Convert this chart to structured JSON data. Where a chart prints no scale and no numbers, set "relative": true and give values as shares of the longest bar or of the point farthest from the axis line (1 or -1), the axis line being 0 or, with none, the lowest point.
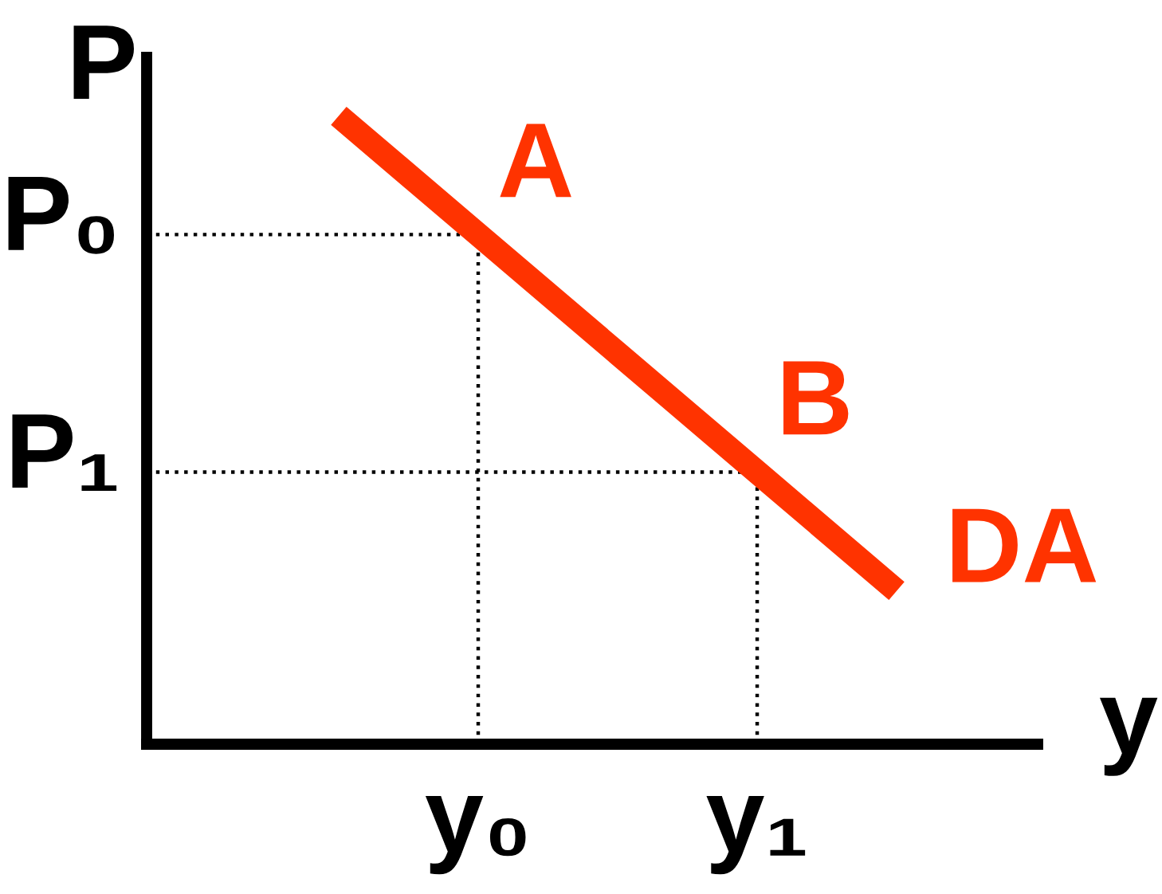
{
  "chart_data": {
    "type": "line",
    "relative": true,
    "xlabel": "y",
    "ylabel": "P",
    "line_style": "solid",
    "categories": [
      null,
      "y₀",
      null,
      "y₁",
      null
    ],
    "series": [
      {
        "name": "DA",
        "color": "#ff3300",
        "values": [
          1,
          0.811,
          0.622,
          0.433,
          0.244
        ]
      }
    ],
    "ref_lines": [
      {
        "axis": "y",
        "value": 0.811,
        "label": "P₀",
        "color": "#000000",
        "line_style": "dotted"
      },
      {
        "axis": "y",
        "value": 0.433,
        "label": "P₁",
        "color": "#000000",
        "line_style": "dotted"
      },
      {
        "axis": "x",
        "value": "y₀",
        "color": "#000000",
        "line_style": "dotted"
      },
      {
        "axis": "x",
        "value": "y₁",
        "color": "#000000",
        "line_style": "dotted"
      }
    ],
    "annotations": [
      {
        "text": "A",
        "x": "y₀",
        "y": 0.811
      },
      {
        "text": "B",
        "x": "y₁",
        "y": 0.433
      }
    ]
  }
}
